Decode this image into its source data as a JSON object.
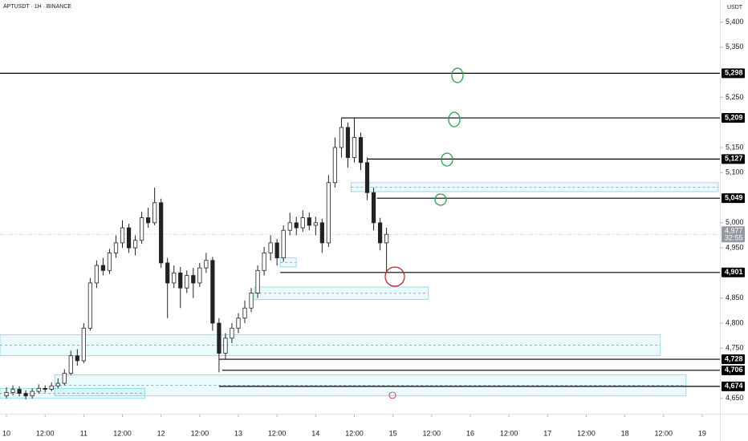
{
  "chart_data": {
    "type": "candlestick",
    "title": "APTUSDT · 1H · BINANCE",
    "currency": "USDT",
    "x": [
      0,
      2,
      4,
      6,
      8,
      10,
      12,
      14,
      16,
      18,
      20,
      22,
      24,
      26,
      28,
      30,
      32,
      34,
      36,
      38,
      40,
      42,
      44,
      46,
      48,
      50,
      52,
      54,
      56,
      58,
      60,
      62,
      64,
      66,
      68,
      70,
      72,
      74,
      76,
      78,
      80,
      82,
      84,
      86,
      88,
      90,
      92,
      94,
      96,
      98,
      100,
      102,
      104,
      106,
      108,
      110,
      112,
      114,
      116,
      118
    ],
    "open": [
      4655,
      4662,
      4668,
      4660,
      4655,
      4664,
      4670,
      4668,
      4675,
      4680,
      4700,
      4735,
      4725,
      4790,
      4880,
      4915,
      4905,
      4940,
      4960,
      4990,
      4950,
      4965,
      5010,
      5000,
      5040,
      4920,
      4880,
      4900,
      4870,
      4895,
      4880,
      4910,
      4925,
      4800,
      4740,
      4770,
      4790,
      4810,
      4830,
      4860,
      4905,
      4940,
      4960,
      4930,
      4985,
      5000,
      4990,
      5010,
      4995,
      5000,
      4960,
      5080,
      5150,
      5190,
      5130,
      5170,
      5120,
      5060,
      5000,
      4960
    ],
    "high": [
      4672,
      4676,
      4674,
      4666,
      4670,
      4678,
      4676,
      4682,
      4690,
      4708,
      4745,
      4748,
      4800,
      4890,
      4925,
      4930,
      4948,
      4975,
      5005,
      4998,
      4975,
      5022,
      5030,
      5070,
      5048,
      4930,
      4915,
      4912,
      4905,
      4910,
      4920,
      4940,
      4932,
      4810,
      4780,
      4800,
      4820,
      4845,
      4870,
      4915,
      4952,
      4975,
      4968,
      4995,
      5020,
      5012,
      5025,
      5020,
      5012,
      5008,
      5095,
      5170,
      5209,
      5200,
      5209,
      5180,
      5130,
      5070,
      5010,
      4990
    ],
    "low": [
      4650,
      4656,
      4654,
      4648,
      4650,
      4660,
      4662,
      4664,
      4670,
      4676,
      4696,
      4715,
      4720,
      4785,
      4870,
      4895,
      4898,
      4930,
      4950,
      4940,
      4935,
      4958,
      4990,
      4995,
      4910,
      4810,
      4870,
      4830,
      4860,
      4850,
      4872,
      4900,
      4785,
      4702,
      4728,
      4760,
      4780,
      4800,
      4822,
      4850,
      4895,
      4925,
      4915,
      4922,
      4975,
      4975,
      4982,
      4985,
      4975,
      4940,
      4952,
      5070,
      5130,
      5110,
      5120,
      5105,
      5045,
      4985,
      4945,
      4901
    ],
    "close": [
      4662,
      4668,
      4660,
      4655,
      4664,
      4670,
      4668,
      4675,
      4680,
      4700,
      4735,
      4725,
      4790,
      4880,
      4915,
      4905,
      4940,
      4960,
      4990,
      4950,
      4965,
      5010,
      5000,
      5040,
      4920,
      4880,
      4900,
      4870,
      4895,
      4880,
      4910,
      4925,
      4800,
      4740,
      4770,
      4790,
      4810,
      4830,
      4860,
      4905,
      4940,
      4960,
      4930,
      4985,
      5000,
      4990,
      5010,
      4995,
      5000,
      4960,
      5080,
      5150,
      5190,
      5130,
      5170,
      5120,
      5060,
      5000,
      4960,
      4977
    ],
    "up_color": "#ffffff",
    "down_color": "#222222",
    "xlim": [
      -2,
      221
    ],
    "xticks": [
      {
        "value": 0,
        "label": "10"
      },
      {
        "value": 12,
        "label": "12:00"
      },
      {
        "value": 24,
        "label": "11"
      },
      {
        "value": 36,
        "label": "12:00"
      },
      {
        "value": 48,
        "label": "12"
      },
      {
        "value": 60,
        "label": "12:00"
      },
      {
        "value": 72,
        "label": "13"
      },
      {
        "value": 84,
        "label": "12:00"
      },
      {
        "value": 96,
        "label": "14"
      },
      {
        "value": 108,
        "label": "12:00"
      },
      {
        "value": 120,
        "label": "15"
      },
      {
        "value": 132,
        "label": "12:00"
      },
      {
        "value": 144,
        "label": "16"
      },
      {
        "value": 156,
        "label": "12:00"
      },
      {
        "value": 168,
        "label": "17"
      },
      {
        "value": 180,
        "label": "12:00"
      },
      {
        "value": 192,
        "label": "18"
      },
      {
        "value": 204,
        "label": "12:00"
      },
      {
        "value": 216,
        "label": "19"
      }
    ],
    "ylim": [
      4629,
      5444
    ],
    "yticks": [
      {
        "value": 4650,
        "label": "4,650"
      },
      {
        "value": 4750,
        "label": "4,750"
      },
      {
        "value": 4800,
        "label": "4,800"
      },
      {
        "value": 4850,
        "label": "4,850"
      },
      {
        "value": 4950,
        "label": "4,950"
      },
      {
        "value": 5000,
        "label": "5,000"
      },
      {
        "value": 5100,
        "label": "5,100"
      },
      {
        "value": 5150,
        "label": "5,150"
      },
      {
        "value": 5250,
        "label": "5,250"
      },
      {
        "value": 5350,
        "label": "5,350"
      },
      {
        "value": 5400,
        "label": "5,400"
      }
    ],
    "levels": [
      {
        "value": 5298,
        "label": "5,298",
        "from": -2
      },
      {
        "value": 5209,
        "label": "5,209",
        "from": 104
      },
      {
        "value": 5127,
        "label": "5,127",
        "from": 112
      },
      {
        "value": 5049,
        "label": "5,049",
        "from": 115
      },
      {
        "value": 4901,
        "label": "4,901",
        "from": 85
      },
      {
        "value": 4728,
        "label": "4,728",
        "from": 66
      },
      {
        "value": 4706,
        "label": "4,706",
        "from": 67
      },
      {
        "value": 4674,
        "label": "4,674",
        "from": 66
      }
    ],
    "zones": [
      {
        "low": 5062,
        "high": 5080,
        "from": 107,
        "to": 221
      },
      {
        "low": 4912,
        "high": 4930,
        "from": 85,
        "to": 90
      },
      {
        "low": 4847,
        "high": 4872,
        "from": 77,
        "to": 131
      },
      {
        "low": 4735,
        "high": 4777,
        "from": -2,
        "to": 203
      },
      {
        "low": 4655,
        "high": 4697,
        "from": 15,
        "to": 211
      },
      {
        "low": 4650,
        "high": 4670,
        "from": -2,
        "to": 43
      }
    ],
    "last": {
      "value": 4977,
      "label": "4,977",
      "countdown": "32:55"
    }
  }
}
